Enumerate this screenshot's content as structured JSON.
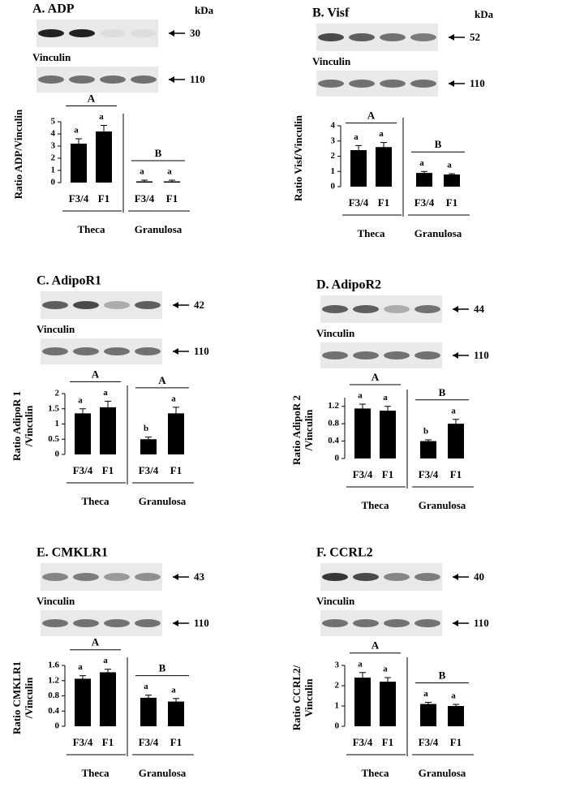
{
  "chart_data": [
    {
      "type": "bar",
      "title": "A. ADP",
      "unit_label": "kDa",
      "target_label": "30",
      "loading_control": "Vinculin",
      "loading_label": "110",
      "ylabel": [
        "Ratio ADP/Vinculin"
      ],
      "categories": [
        "F3/4",
        "F1",
        "F3/4",
        "F1"
      ],
      "groups": [
        "Theca",
        "Granulosa"
      ],
      "group_letters": [
        "A",
        "B"
      ],
      "letters": [
        "a",
        "a",
        "a",
        "a"
      ],
      "values": [
        3.2,
        4.2,
        0.1,
        0.1
      ],
      "errors": [
        0.4,
        0.5,
        0.1,
        0.1
      ],
      "color": "#000000",
      "ylim": [
        0,
        5
      ],
      "yticks": [
        0,
        1,
        2,
        3,
        4,
        5
      ]
    },
    {
      "type": "bar",
      "title": "B. Visf",
      "unit_label": "kDa",
      "target_label": "52",
      "loading_control": "Vinculin",
      "loading_label": "110",
      "ylabel": [
        "Ratio Visf/Vinculin"
      ],
      "categories": [
        "F3/4",
        "F1",
        "F3/4",
        "F1"
      ],
      "groups": [
        "Theca",
        "Granulosa"
      ],
      "group_letters": [
        "A",
        "B"
      ],
      "letters": [
        "a",
        "a",
        "a",
        "a"
      ],
      "values": [
        2.4,
        2.6,
        0.9,
        0.8
      ],
      "errors": [
        0.3,
        0.3,
        0.1,
        0.05
      ],
      "color": "#000000",
      "ylim": [
        0,
        4
      ],
      "yticks": [
        0,
        1,
        2,
        3,
        4
      ]
    },
    {
      "type": "bar",
      "title": "C. AdipoR1",
      "target_label": "42",
      "loading_control": "Vinculin",
      "loading_label": "110",
      "ylabel": [
        "Ratio AdipoR 1",
        "/Vinculin"
      ],
      "categories": [
        "F3/4",
        "F1",
        "F3/4",
        "F1"
      ],
      "groups": [
        "Theca",
        "Granulosa"
      ],
      "group_letters": [
        "A",
        "A"
      ],
      "letters": [
        "a",
        "a",
        "b",
        "a"
      ],
      "values": [
        1.35,
        1.55,
        0.5,
        1.35
      ],
      "errors": [
        0.15,
        0.2,
        0.07,
        0.2
      ],
      "color": "#000000",
      "ylim": [
        0,
        2
      ],
      "yticks": [
        0,
        0.5,
        1,
        1.5,
        2
      ]
    },
    {
      "type": "bar",
      "title": "D. AdipoR2",
      "target_label": "44",
      "loading_control": "Vinculin",
      "loading_label": "110",
      "ylabel": [
        "Ratio AdipoR 2",
        "/Vinculin"
      ],
      "categories": [
        "F3/4",
        "F1",
        "F3/4",
        "F1"
      ],
      "groups": [
        "Theca",
        "Granulosa"
      ],
      "group_letters": [
        "A",
        "B"
      ],
      "letters": [
        "a",
        "a",
        "b",
        "a"
      ],
      "values": [
        1.15,
        1.1,
        0.4,
        0.8
      ],
      "errors": [
        0.1,
        0.1,
        0.03,
        0.1
      ],
      "color": "#000000",
      "ylim": [
        0,
        1.4
      ],
      "yticks": [
        0,
        0.4,
        0.8,
        1.2
      ]
    },
    {
      "type": "bar",
      "title": "E. CMKLR1",
      "target_label": "43",
      "loading_control": "Vinculin",
      "loading_label": "110",
      "ylabel": [
        "Ratio CMKLR1",
        "/Vinculin"
      ],
      "categories": [
        "F3/4",
        "F1",
        "F3/4",
        "F1"
      ],
      "groups": [
        "Theca",
        "Granulosa"
      ],
      "group_letters": [
        "A",
        "B"
      ],
      "letters": [
        "a",
        "a",
        "a",
        "a"
      ],
      "values": [
        1.25,
        1.42,
        0.75,
        0.65
      ],
      "errors": [
        0.08,
        0.08,
        0.07,
        0.08
      ],
      "color": "#000000",
      "ylim": [
        0,
        1.6
      ],
      "yticks": [
        0,
        0.4,
        0.8,
        1.2,
        1.6
      ]
    },
    {
      "type": "bar",
      "title": "F. CCRL2",
      "target_label": "40",
      "loading_control": "Vinculin",
      "loading_label": "110",
      "ylabel": [
        "Ratio CCRL2/",
        "Vinculin"
      ],
      "categories": [
        "F3/4",
        "F1",
        "F3/4",
        "F1"
      ],
      "groups": [
        "Theca",
        "Granulosa"
      ],
      "group_letters": [
        "A",
        "B"
      ],
      "letters": [
        "a",
        "a",
        "a",
        "a"
      ],
      "values": [
        2.4,
        2.2,
        1.1,
        1.0
      ],
      "errors": [
        0.25,
        0.2,
        0.08,
        0.08
      ],
      "color": "#000000",
      "ylim": [
        0,
        3
      ],
      "yticks": [
        0,
        1,
        2,
        3
      ]
    }
  ]
}
